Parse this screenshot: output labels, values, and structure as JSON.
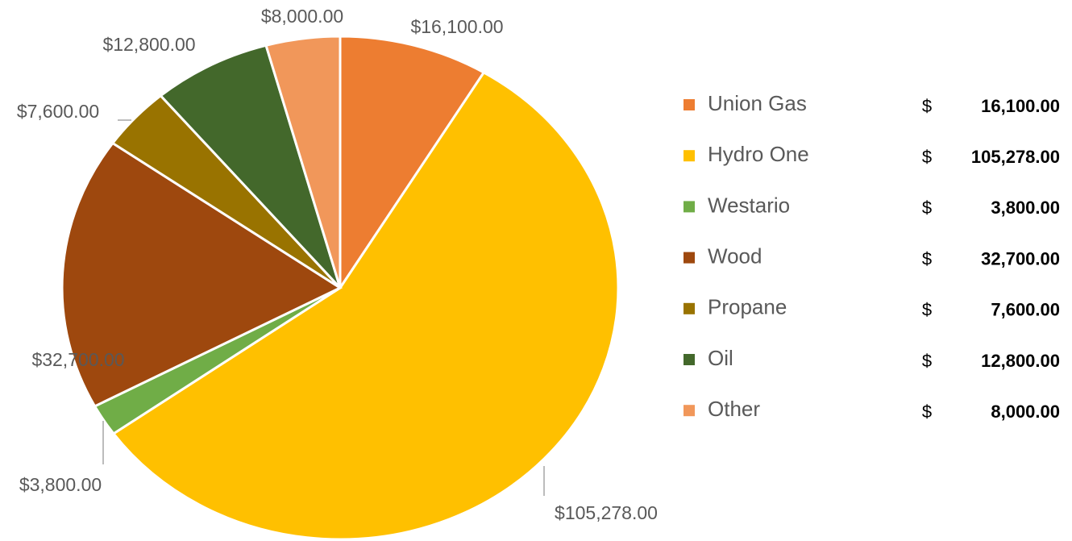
{
  "chart_data": {
    "type": "pie",
    "categories": [
      "Union Gas",
      "Hydro One",
      "Westario",
      "Wood",
      "Propane",
      "Oil",
      "Other"
    ],
    "values": [
      16100,
      105278,
      3800,
      32700,
      7600,
      12800,
      8000
    ],
    "value_labels": [
      "$16,100.00",
      "$105,278.00",
      "$3,800.00",
      "$32,700.00",
      "$7,600.00",
      "$12,800.00",
      "$8,000.00"
    ],
    "colors": [
      "#ED7D31",
      "#FFC000",
      "#70AD47",
      "#9E480E",
      "#997300",
      "#43682B",
      "#F1975A"
    ],
    "legend": "right",
    "table": {
      "currency": "$",
      "amounts": [
        "16,100.00",
        "105,278.00",
        "3,800.00",
        "32,700.00",
        "7,600.00",
        "12,800.00",
        "8,000.00"
      ]
    }
  }
}
